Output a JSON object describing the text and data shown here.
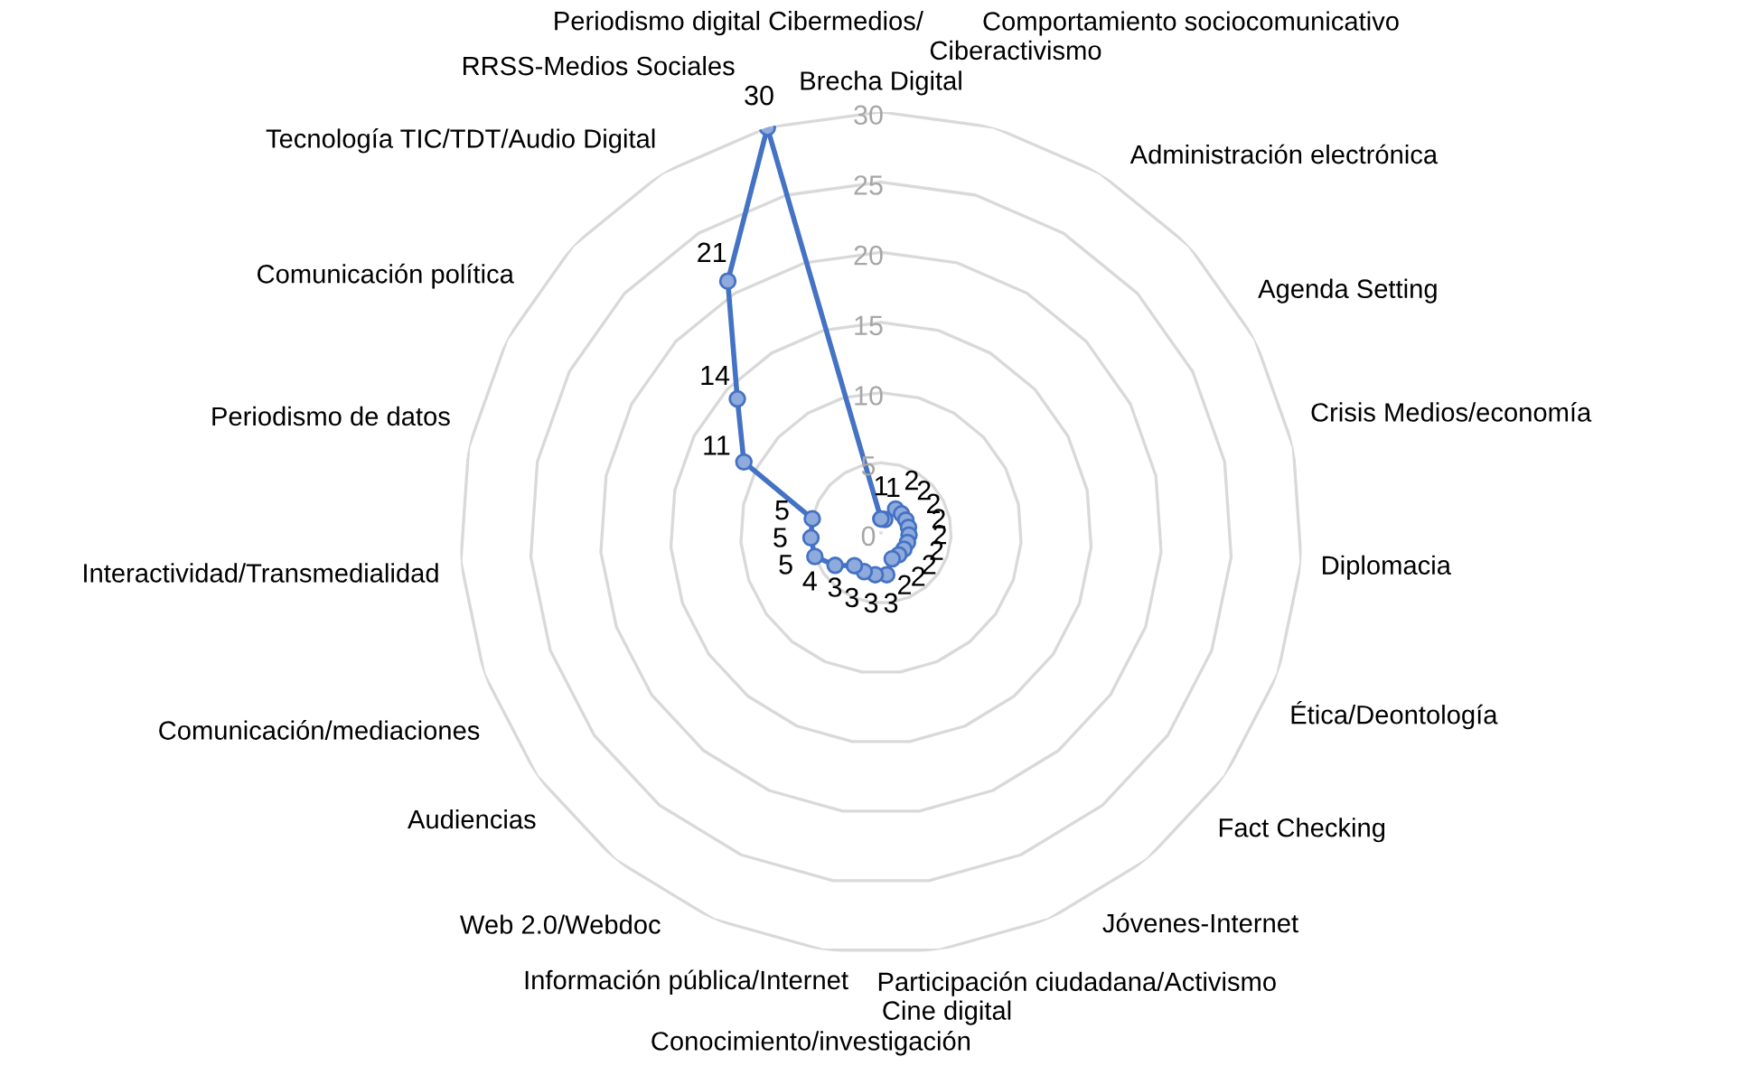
{
  "chart_data": {
    "type": "radar",
    "categories": [
      "Brecha Digital",
      "Ciberactivismo",
      "Comportamiento sociocomunicativo",
      "Administración electrónica",
      "Agenda Setting",
      "Crisis Medios/economía",
      "Diplomacia",
      "Ética/Deontología",
      "Fact Checking",
      "Jóvenes-Internet",
      "Participación ciudadana/Activismo",
      "Cine digital",
      "Conocimiento/investigación",
      "Información pública/Internet",
      "Web 2.0/Webdoc",
      "Audiencias",
      "Comunicación/mediaciones",
      "Interactividad/Transmedialidad",
      "Periodismo de datos",
      "Comunicación política",
      "Tecnología TIC/TDT/Audio Digital",
      "RRSS-Medios Sociales",
      "Periodismo digital Cibermedios/"
    ],
    "series": [
      {
        "color": "#4472c4",
        "values": [
          1,
          1,
          2,
          2,
          2,
          2,
          2,
          2,
          2,
          2,
          2,
          3,
          3,
          3,
          3,
          4,
          5,
          5,
          5,
          11,
          14,
          21,
          30
        ]
      }
    ],
    "ylim": [
      0,
      30
    ],
    "yticks": [
      0,
      5,
      10,
      15,
      20,
      25,
      30
    ],
    "grid": true,
    "marker": "circle",
    "line_style": "solid",
    "data_labels": true
  }
}
